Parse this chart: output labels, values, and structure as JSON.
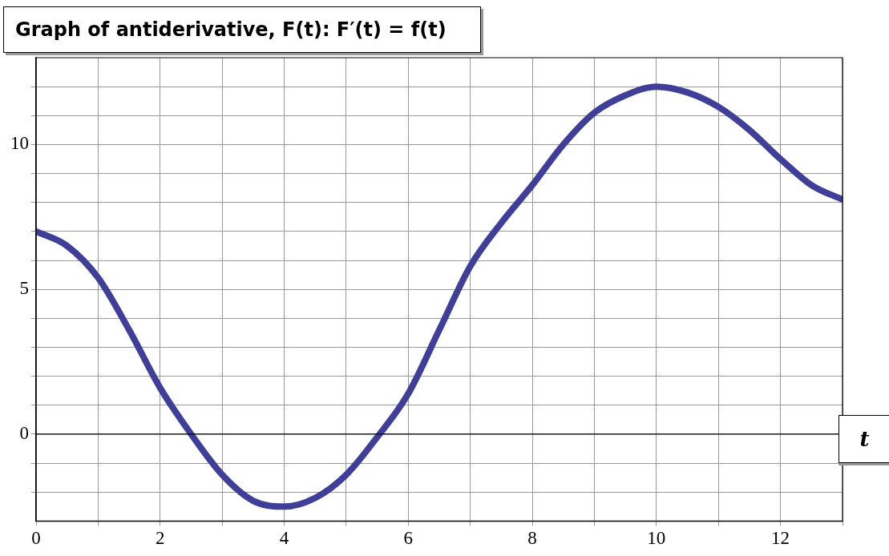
{
  "chart_data": {
    "type": "line",
    "title": "Graph of antiderivative, F(t):   F′(t) = f(t)",
    "xlabel": "t",
    "x": [
      0,
      0.5,
      1,
      1.5,
      2,
      2.5,
      3,
      3.5,
      4,
      4.5,
      5,
      5.5,
      6,
      6.5,
      7,
      7.5,
      8,
      8.5,
      9,
      9.5,
      10,
      10.5,
      11,
      11.5,
      12,
      12.5,
      13
    ],
    "series": [
      {
        "color": "#3f3f9a",
        "values": [
          7,
          6.5,
          5.4,
          3.6,
          1.6,
          0,
          -1.4,
          -2.3,
          -2.5,
          -2.2,
          -1.4,
          -0.1,
          1.4,
          3.6,
          5.8,
          7.3,
          8.6,
          10.0,
          11.1,
          11.7,
          12,
          11.8,
          11.3,
          10.5,
          9.5,
          8.6,
          8.1
        ]
      }
    ],
    "xlim": [
      0,
      13
    ],
    "xticks": [
      0,
      {
        "value": 1,
        "label": null
      },
      2,
      {
        "value": 3,
        "label": null
      },
      4,
      {
        "value": 5,
        "label": null
      },
      6,
      {
        "value": 7,
        "label": null
      },
      8,
      {
        "value": 9,
        "label": null
      },
      10,
      {
        "value": 11,
        "label": null
      },
      12,
      {
        "value": 13,
        "label": null
      }
    ],
    "ylim": [
      -3,
      13
    ],
    "yticks": [
      {
        "value": -2,
        "label": null
      },
      {
        "value": -1,
        "label": null
      },
      0,
      {
        "value": 1,
        "label": null
      },
      {
        "value": 2,
        "label": null
      },
      {
        "value": 3,
        "label": null
      },
      {
        "value": 4,
        "label": null
      },
      5,
      {
        "value": 6,
        "label": null
      },
      {
        "value": 7,
        "label": null
      },
      {
        "value": 8,
        "label": null
      },
      {
        "value": 9,
        "label": null
      },
      10,
      {
        "value": 11,
        "label": null
      },
      {
        "value": 12,
        "label": null
      }
    ],
    "grid": true,
    "marker": "none",
    "line_style": "solid"
  }
}
